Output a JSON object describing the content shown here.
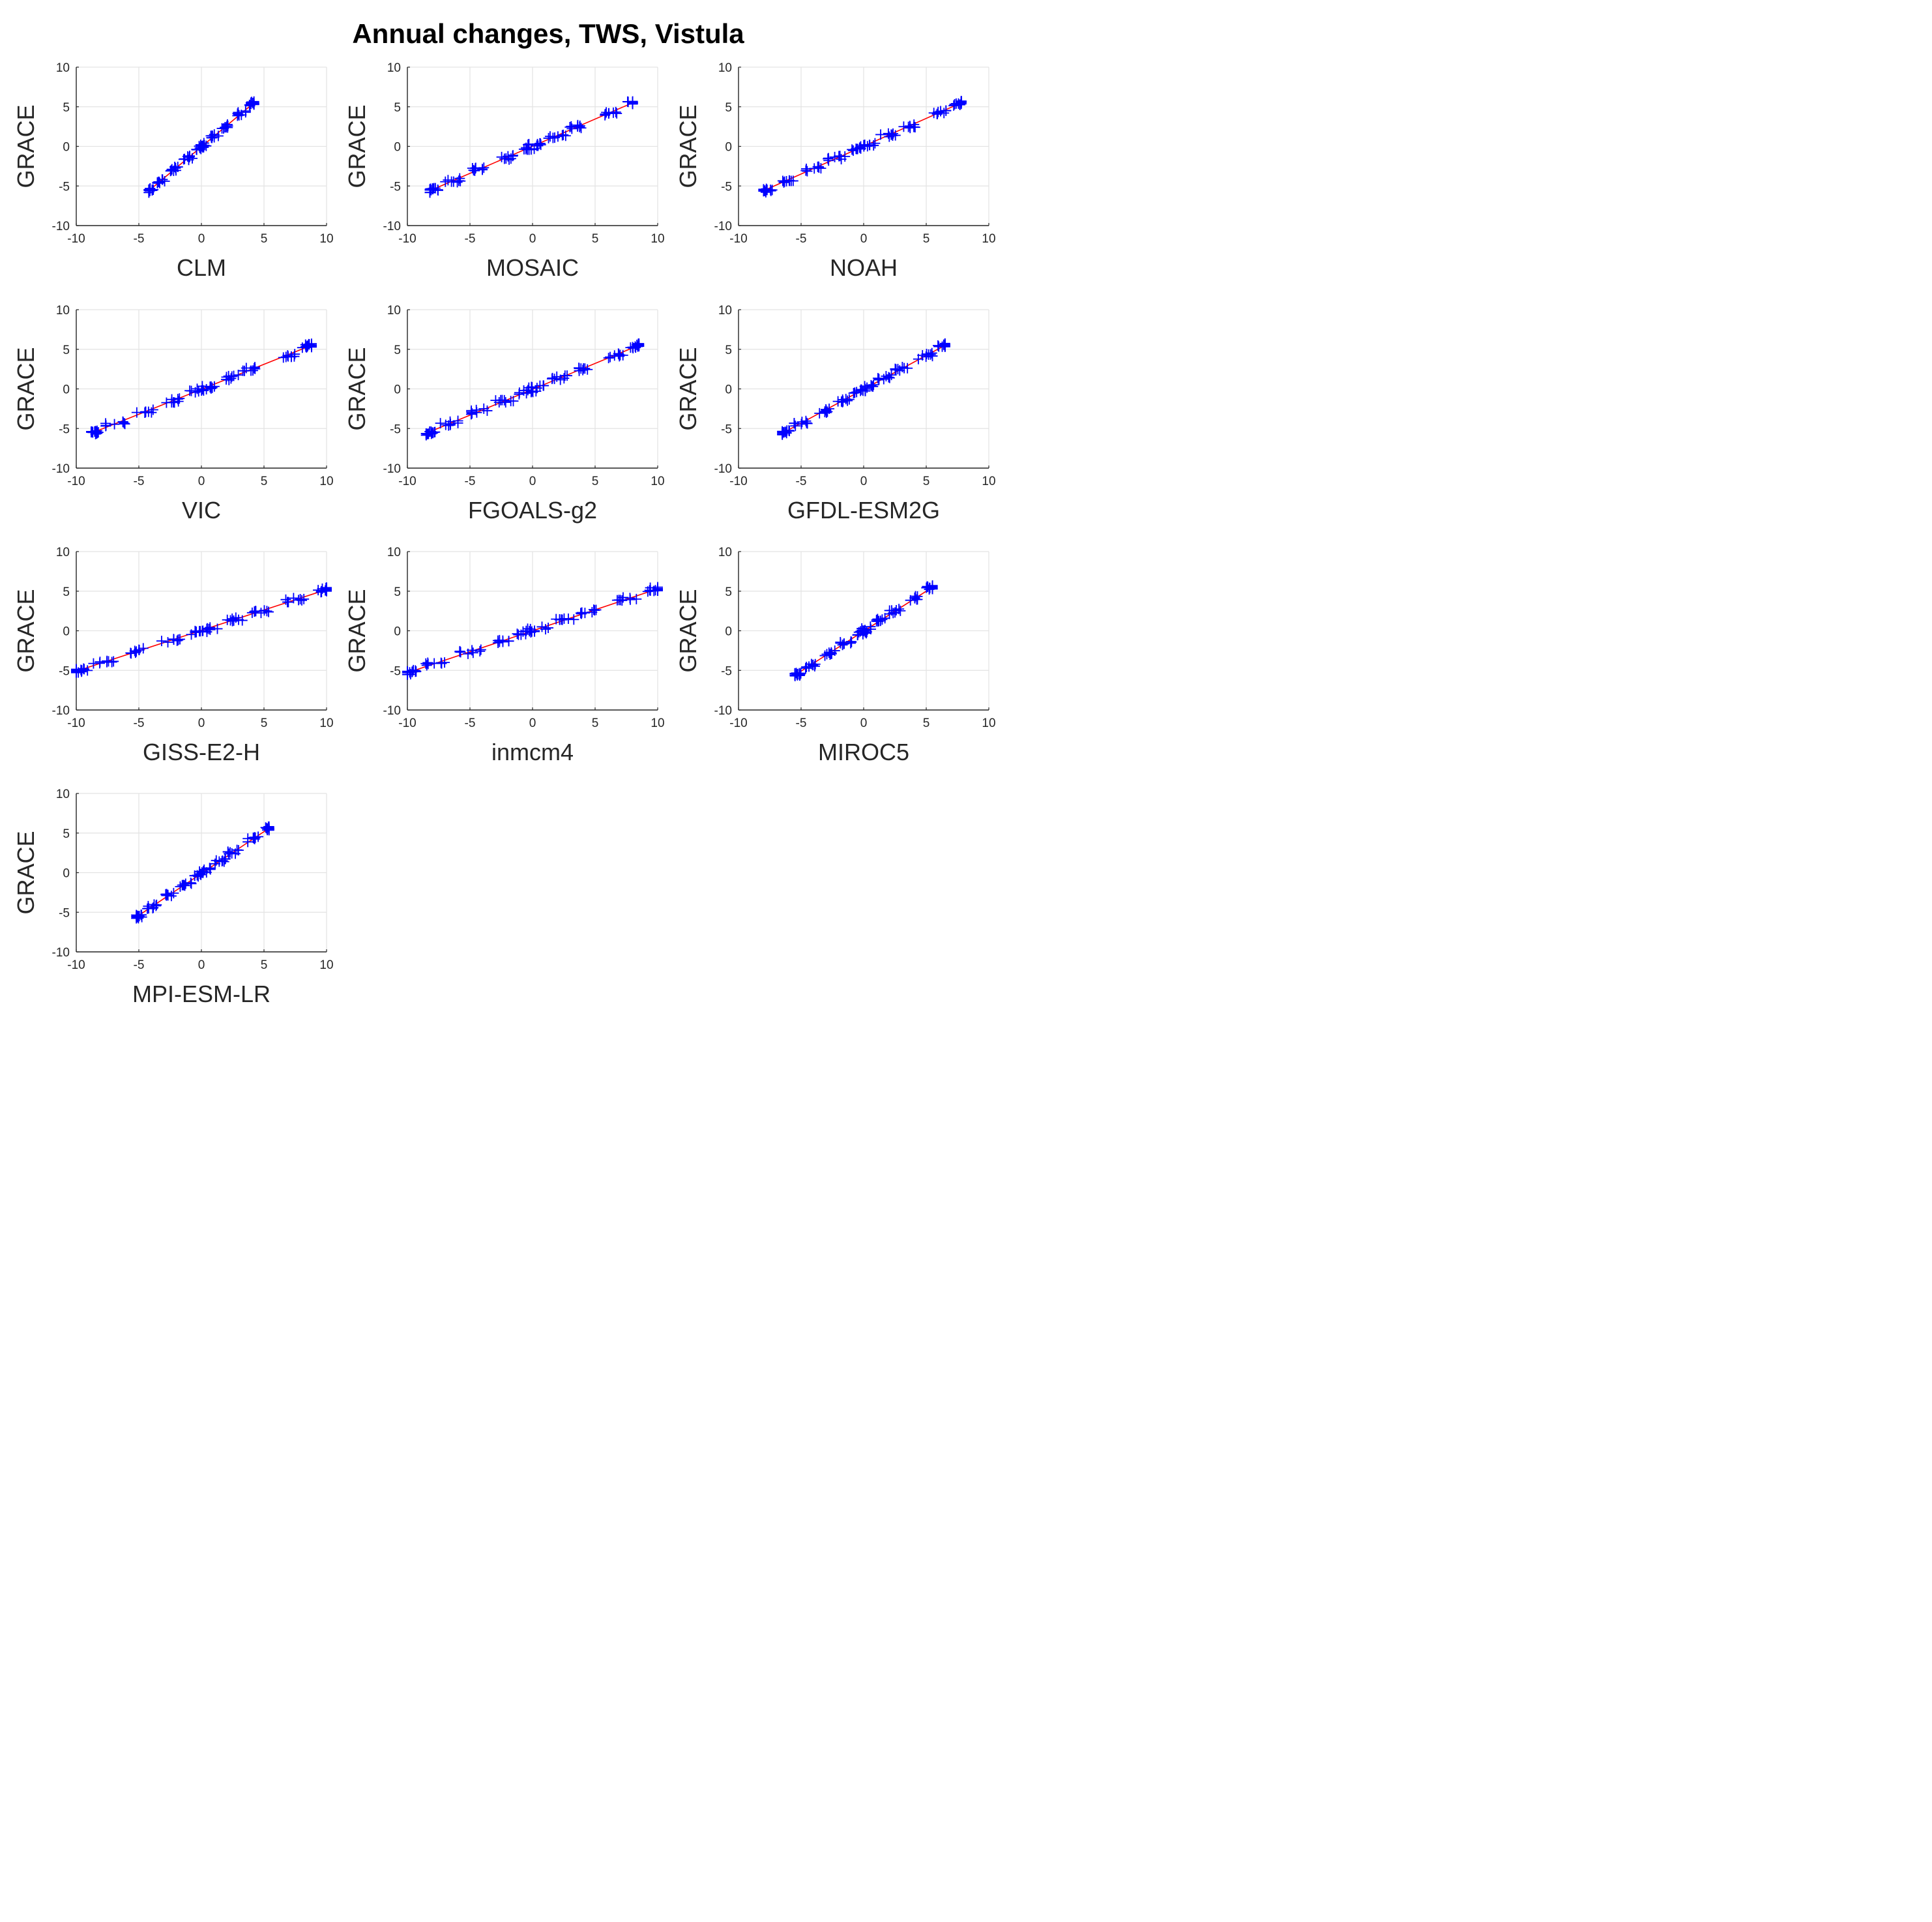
{
  "figure_title": "Annual changes, TWS, Vistula",
  "colors": {
    "markers": "#0000ff",
    "fit_line": "#ff0000",
    "grid": "#e3e3e3",
    "axes": "#262626"
  },
  "chart_data": [
    {
      "type": "scatter",
      "xlabel": "CLM",
      "ylabel": "GRACE",
      "xlim": [
        -10,
        10
      ],
      "ylim": [
        -10,
        10
      ],
      "xticks": [
        -10,
        -5,
        0,
        5,
        10
      ],
      "yticks": [
        -10,
        -5,
        0,
        5,
        10
      ],
      "grid": true,
      "marker": "+",
      "x_range": [
        -4.2,
        4.2
      ],
      "y_range": [
        -5.6,
        5.5
      ],
      "fit": true
    },
    {
      "type": "scatter",
      "xlabel": "MOSAIC",
      "ylabel": "GRACE",
      "xlim": [
        -10,
        10
      ],
      "ylim": [
        -10,
        10
      ],
      "xticks": [
        -10,
        -5,
        0,
        5,
        10
      ],
      "yticks": [
        -10,
        -5,
        0,
        5,
        10
      ],
      "grid": true,
      "marker": "+",
      "x_range": [
        -8.2,
        8.0
      ],
      "y_range": [
        -5.6,
        5.5
      ],
      "fit": true
    },
    {
      "type": "scatter",
      "xlabel": "NOAH",
      "ylabel": "GRACE",
      "xlim": [
        -10,
        10
      ],
      "ylim": [
        -10,
        10
      ],
      "xticks": [
        -10,
        -5,
        0,
        5,
        10
      ],
      "yticks": [
        -10,
        -5,
        0,
        5,
        10
      ],
      "grid": true,
      "marker": "+",
      "x_range": [
        -8.0,
        7.8
      ],
      "y_range": [
        -5.6,
        5.5
      ],
      "fit": true
    },
    {
      "type": "scatter",
      "xlabel": "VIC",
      "ylabel": "GRACE",
      "xlim": [
        -10,
        10
      ],
      "ylim": [
        -10,
        10
      ],
      "xticks": [
        -10,
        -5,
        0,
        5,
        10
      ],
      "yticks": [
        -10,
        -5,
        0,
        5,
        10
      ],
      "grid": true,
      "marker": "+",
      "x_range": [
        -8.8,
        8.8
      ],
      "y_range": [
        -5.6,
        5.5
      ],
      "fit": true
    },
    {
      "type": "scatter",
      "xlabel": "FGOALS-g2",
      "ylabel": "GRACE",
      "xlim": [
        -10,
        10
      ],
      "ylim": [
        -10,
        10
      ],
      "xticks": [
        -10,
        -5,
        0,
        5,
        10
      ],
      "yticks": [
        -10,
        -5,
        0,
        5,
        10
      ],
      "grid": true,
      "marker": "+",
      "x_range": [
        -8.5,
        8.5
      ],
      "y_range": [
        -5.6,
        5.5
      ],
      "fit": true
    },
    {
      "type": "scatter",
      "xlabel": "GFDL-ESM2G",
      "ylabel": "GRACE",
      "xlim": [
        -10,
        10
      ],
      "ylim": [
        -10,
        10
      ],
      "xticks": [
        -10,
        -5,
        0,
        5,
        10
      ],
      "yticks": [
        -10,
        -5,
        0,
        5,
        10
      ],
      "grid": true,
      "marker": "+",
      "x_range": [
        -6.5,
        6.5
      ],
      "y_range": [
        -5.6,
        5.5
      ],
      "fit": true
    },
    {
      "type": "scatter",
      "xlabel": "GISS-E2-H",
      "ylabel": "GRACE",
      "xlim": [
        -10,
        10
      ],
      "ylim": [
        -10,
        10
      ],
      "xticks": [
        -10,
        -5,
        0,
        5,
        10
      ],
      "yticks": [
        -10,
        -5,
        0,
        5,
        10
      ],
      "grid": true,
      "marker": "+",
      "x_range": [
        -10,
        10
      ],
      "y_range": [
        -5.1,
        5.2
      ],
      "fit": true
    },
    {
      "type": "scatter",
      "xlabel": "inmcm4",
      "ylabel": "GRACE",
      "xlim": [
        -10,
        10
      ],
      "ylim": [
        -10,
        10
      ],
      "xticks": [
        -10,
        -5,
        0,
        5,
        10
      ],
      "yticks": [
        -10,
        -5,
        0,
        5,
        10
      ],
      "grid": true,
      "marker": "+",
      "x_range": [
        -10,
        10
      ],
      "y_range": [
        -5.3,
        5.3
      ],
      "fit": true
    },
    {
      "type": "scatter",
      "xlabel": "MIROC5",
      "ylabel": "GRACE",
      "xlim": [
        -10,
        10
      ],
      "ylim": [
        -10,
        10
      ],
      "xticks": [
        -10,
        -5,
        0,
        5,
        10
      ],
      "yticks": [
        -10,
        -5,
        0,
        5,
        10
      ],
      "grid": true,
      "marker": "+",
      "x_range": [
        -5.5,
        5.5
      ],
      "y_range": [
        -5.6,
        5.5
      ],
      "fit": true
    },
    {
      "type": "scatter",
      "xlabel": "MPI-ESM-LR",
      "ylabel": "GRACE",
      "xlim": [
        -10,
        10
      ],
      "ylim": [
        -10,
        10
      ],
      "xticks": [
        -10,
        -5,
        0,
        5,
        10
      ],
      "yticks": [
        -10,
        -5,
        0,
        5,
        10
      ],
      "grid": true,
      "marker": "+",
      "x_range": [
        -5.2,
        5.4
      ],
      "y_range": [
        -5.6,
        5.6
      ],
      "fit": true
    }
  ]
}
